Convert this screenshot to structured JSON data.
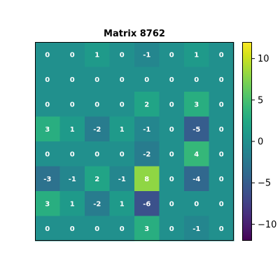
{
  "chart_data": {
    "type": "heatmap",
    "title": "Matrix 8762",
    "rows": 8,
    "cols": 8,
    "values": [
      [
        0,
        0,
        1,
        0,
        -1,
        0,
        1,
        0
      ],
      [
        0,
        0,
        0,
        0,
        0,
        0,
        0,
        0
      ],
      [
        0,
        0,
        0,
        0,
        2,
        0,
        3,
        0
      ],
      [
        3,
        1,
        -2,
        1,
        -1,
        0,
        -5,
        0
      ],
      [
        0,
        0,
        0,
        0,
        -2,
        0,
        4,
        0
      ],
      [
        -3,
        -1,
        2,
        -1,
        8,
        0,
        -4,
        0
      ],
      [
        3,
        1,
        -2,
        1,
        -6,
        0,
        0,
        0
      ],
      [
        0,
        0,
        0,
        0,
        3,
        0,
        -1,
        0
      ]
    ],
    "colormap": "viridis",
    "vmin": -12,
    "vmax": 12,
    "colorbar": {
      "ticks": [
        10,
        5,
        0,
        -5,
        -10
      ],
      "tick_labels": [
        "10",
        "5",
        "0",
        "−5",
        "−10"
      ]
    },
    "show_axis_ticks": false,
    "cell_label_color": "#ffffff"
  }
}
